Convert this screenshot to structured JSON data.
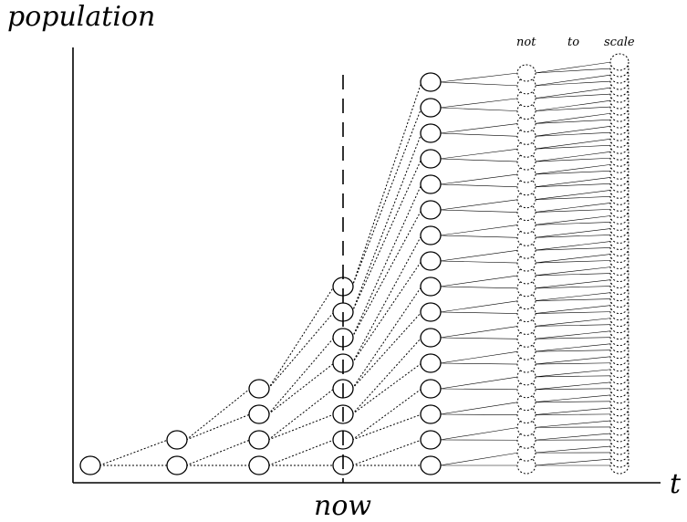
{
  "labels": {
    "y_axis": "population",
    "x_axis": "t",
    "now": "now",
    "note_1": "not",
    "note_2": "to",
    "note_3": "scale"
  },
  "generations": [
    {
      "nodes": 1,
      "style": "solid"
    },
    {
      "nodes": 2,
      "style": "solid"
    },
    {
      "nodes": 4,
      "style": "solid"
    },
    {
      "nodes": 8,
      "style": "solid"
    },
    {
      "nodes": 16,
      "style": "solid"
    },
    {
      "nodes": 32,
      "style": "dotted"
    },
    {
      "nodes": 64,
      "style": "dotted"
    }
  ]
}
